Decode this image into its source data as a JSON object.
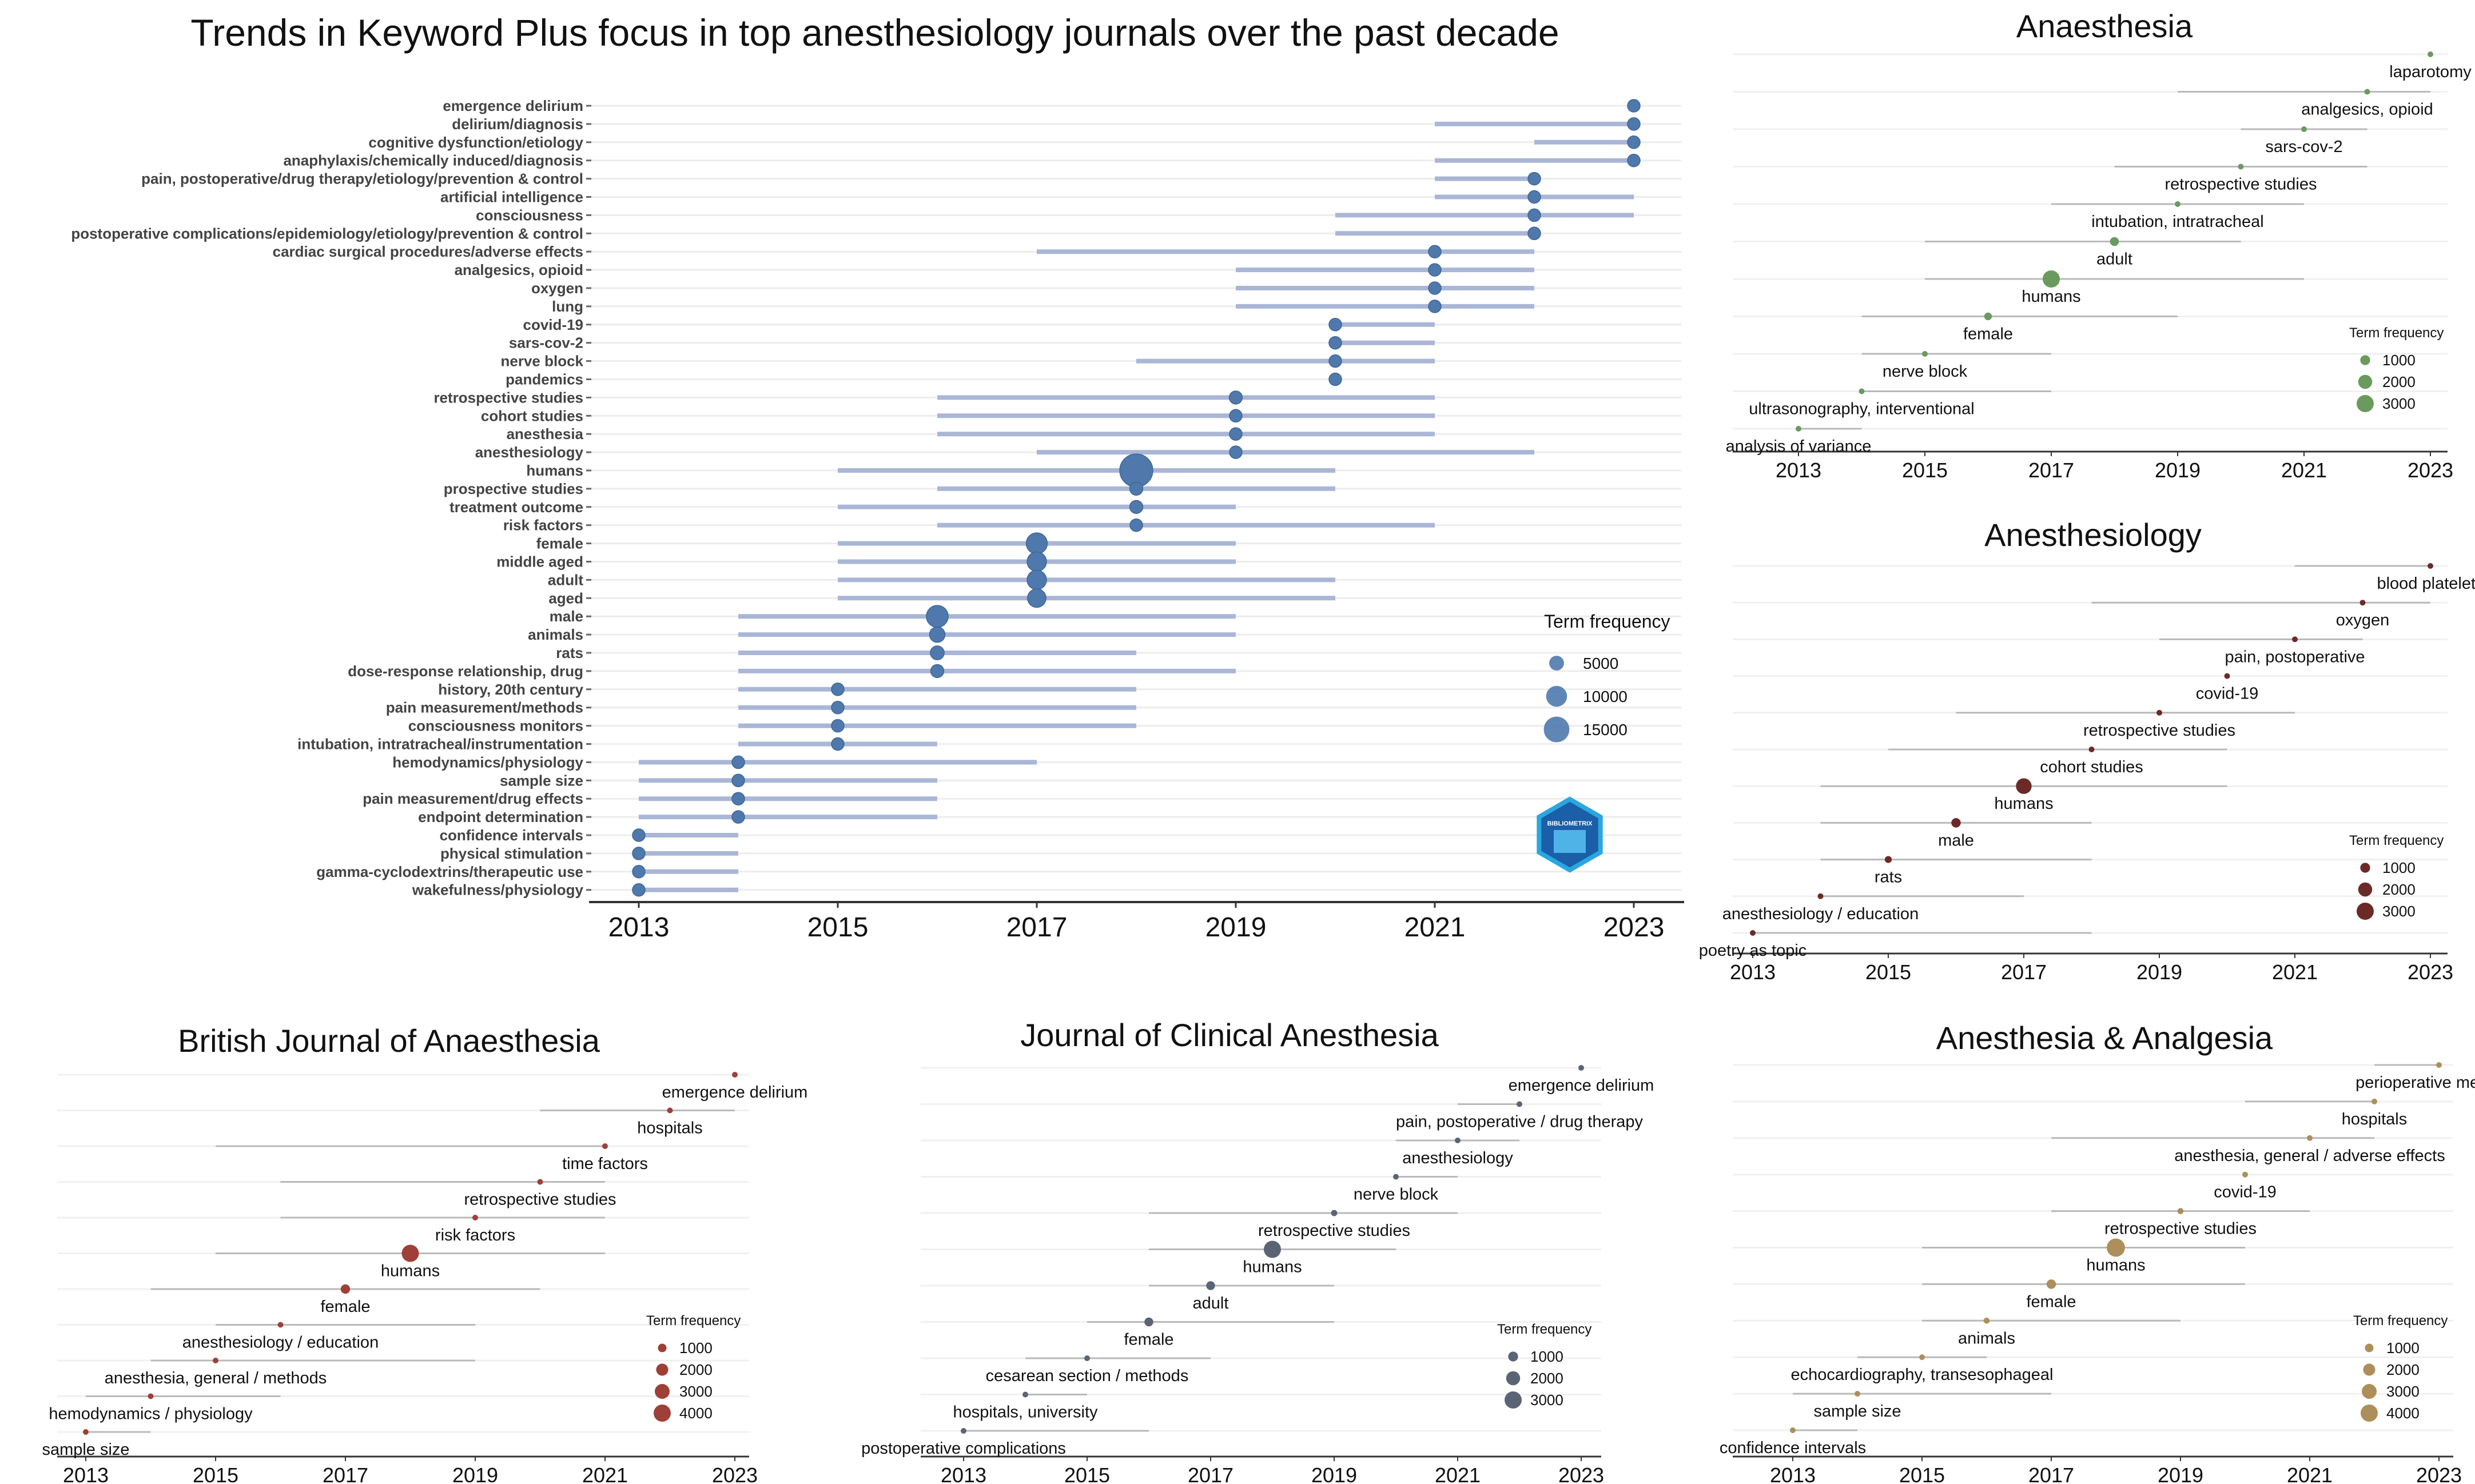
{
  "chart_data": [
    {
      "type": "scatter",
      "title": "Trends in Keyword Plus focus in top anesthesiology journals over the past decade",
      "color": "#4f79ad",
      "line_color": "#aab6d6",
      "xlim": [
        2013,
        2023
      ],
      "x_ticks": [
        "2013",
        "2015",
        "2017",
        "2019",
        "2021",
        "2023"
      ],
      "legend_title": "Term frequency",
      "legend_sizes": [
        5000,
        10000,
        15000
      ],
      "legend_labels": [
        "5000",
        "10000",
        "15000"
      ],
      "legend_position": "right",
      "logo_text": "BIBLIOMETRIX",
      "terms": [
        {
          "label": "emergence delirium",
          "start": 2023,
          "peak": 2023,
          "end": 2023,
          "freq": 600
        },
        {
          "label": "delirium/diagnosis",
          "start": 2021,
          "peak": 2023,
          "end": 2023,
          "freq": 600
        },
        {
          "label": "cognitive dysfunction/etiology",
          "start": 2022,
          "peak": 2023,
          "end": 2023,
          "freq": 600
        },
        {
          "label": "anaphylaxis/chemically induced/diagnosis",
          "start": 2021,
          "peak": 2023,
          "end": 2023,
          "freq": 600
        },
        {
          "label": "pain, postoperative/drug therapy/etiology/prevention & control",
          "start": 2021,
          "peak": 2022,
          "end": 2022,
          "freq": 600
        },
        {
          "label": "artificial intelligence",
          "start": 2021,
          "peak": 2022,
          "end": 2023,
          "freq": 600
        },
        {
          "label": "consciousness",
          "start": 2020,
          "peak": 2022,
          "end": 2023,
          "freq": 700
        },
        {
          "label": "postoperative complications/epidemiology/etiology/prevention & control",
          "start": 2020,
          "peak": 2022,
          "end": 2022,
          "freq": 600
        },
        {
          "label": "cardiac surgical procedures/adverse effects",
          "start": 2017,
          "peak": 2021,
          "end": 2022,
          "freq": 700
        },
        {
          "label": "analgesics, opioid",
          "start": 2019,
          "peak": 2021,
          "end": 2022,
          "freq": 700
        },
        {
          "label": "oxygen",
          "start": 2019,
          "peak": 2021,
          "end": 2022,
          "freq": 700
        },
        {
          "label": "lung",
          "start": 2019,
          "peak": 2021,
          "end": 2022,
          "freq": 700
        },
        {
          "label": "covid-19",
          "start": 2020,
          "peak": 2020,
          "end": 2021,
          "freq": 900
        },
        {
          "label": "sars-cov-2",
          "start": 2020,
          "peak": 2020,
          "end": 2021,
          "freq": 800
        },
        {
          "label": "nerve block",
          "start": 2018,
          "peak": 2020,
          "end": 2021,
          "freq": 900
        },
        {
          "label": "pandemics",
          "start": 2020,
          "peak": 2020,
          "end": 2020,
          "freq": 700
        },
        {
          "label": "retrospective studies",
          "start": 2016,
          "peak": 2019,
          "end": 2021,
          "freq": 2500
        },
        {
          "label": "cohort studies",
          "start": 2016,
          "peak": 2019,
          "end": 2021,
          "freq": 2200
        },
        {
          "label": "anesthesia",
          "start": 2016,
          "peak": 2019,
          "end": 2021,
          "freq": 2000
        },
        {
          "label": "anesthesiology",
          "start": 2017,
          "peak": 2019,
          "end": 2022,
          "freq": 1700
        },
        {
          "label": "humans",
          "start": 2015,
          "peak": 2018,
          "end": 2020,
          "freq": 16000
        },
        {
          "label": "prospective studies",
          "start": 2016,
          "peak": 2018,
          "end": 2020,
          "freq": 2500
        },
        {
          "label": "treatment outcome",
          "start": 2015,
          "peak": 2018,
          "end": 2019,
          "freq": 2500
        },
        {
          "label": "risk factors",
          "start": 2016,
          "peak": 2018,
          "end": 2021,
          "freq": 2200
        },
        {
          "label": "female",
          "start": 2015,
          "peak": 2017,
          "end": 2019,
          "freq": 6500
        },
        {
          "label": "middle aged",
          "start": 2015,
          "peak": 2017,
          "end": 2019,
          "freq": 5500
        },
        {
          "label": "adult",
          "start": 2015,
          "peak": 2017,
          "end": 2020,
          "freq": 5500
        },
        {
          "label": "aged",
          "start": 2015,
          "peak": 2017,
          "end": 2020,
          "freq": 5000
        },
        {
          "label": "male",
          "start": 2014,
          "peak": 2016,
          "end": 2019,
          "freq": 7000
        },
        {
          "label": "animals",
          "start": 2014,
          "peak": 2016,
          "end": 2019,
          "freq": 3500
        },
        {
          "label": "rats",
          "start": 2014,
          "peak": 2016,
          "end": 2018,
          "freq": 2800
        },
        {
          "label": "dose-response relationship, drug",
          "start": 2014,
          "peak": 2016,
          "end": 2019,
          "freq": 2500
        },
        {
          "label": "history, 20th century",
          "start": 2014,
          "peak": 2015,
          "end": 2018,
          "freq": 1000
        },
        {
          "label": "pain measurement/methods",
          "start": 2014,
          "peak": 2015,
          "end": 2018,
          "freq": 1000
        },
        {
          "label": "consciousness monitors",
          "start": 2014,
          "peak": 2015,
          "end": 2018,
          "freq": 1000
        },
        {
          "label": "intubation, intratracheal/instrumentation",
          "start": 2014,
          "peak": 2015,
          "end": 2016,
          "freq": 1000
        },
        {
          "label": "hemodynamics/physiology",
          "start": 2013,
          "peak": 2014,
          "end": 2017,
          "freq": 1200
        },
        {
          "label": "sample size",
          "start": 2013,
          "peak": 2014,
          "end": 2016,
          "freq": 1200
        },
        {
          "label": "pain measurement/drug effects",
          "start": 2013,
          "peak": 2014,
          "end": 2016,
          "freq": 1200
        },
        {
          "label": "endpoint determination",
          "start": 2013,
          "peak": 2014,
          "end": 2016,
          "freq": 1200
        },
        {
          "label": "confidence intervals",
          "start": 2013,
          "peak": 2013,
          "end": 2014,
          "freq": 1000
        },
        {
          "label": "physical stimulation",
          "start": 2013,
          "peak": 2013,
          "end": 2014,
          "freq": 1000
        },
        {
          "label": "gamma-cyclodextrins/therapeutic use",
          "start": 2013,
          "peak": 2013,
          "end": 2014,
          "freq": 1000
        },
        {
          "label": "wakefulness/physiology",
          "start": 2013,
          "peak": 2013,
          "end": 2014,
          "freq": 1000
        }
      ]
    },
    {
      "type": "scatter",
      "title": "Anaesthesia",
      "color": "#6a9a5e",
      "line_color": "#b9b9b9",
      "xlim": [
        2013,
        2023
      ],
      "x_ticks": [
        "2013",
        "2015",
        "2017",
        "2019",
        "2021",
        "2023"
      ],
      "legend_title": "Term frequency",
      "legend_sizes": [
        1000,
        2000,
        3000
      ],
      "legend_labels": [
        "1000",
        "2000",
        "3000"
      ],
      "legend_position": "right",
      "terms": [
        {
          "label": "laparotomy",
          "start": 2023,
          "peak": 2023,
          "end": 2023,
          "freq": 100
        },
        {
          "label": "analgesics, opioid",
          "start": 2019,
          "peak": 2022,
          "end": 2023,
          "freq": 120
        },
        {
          "label": "sars-cov-2",
          "start": 2020,
          "peak": 2021,
          "end": 2022,
          "freq": 150
        },
        {
          "label": "retrospective studies",
          "start": 2018,
          "peak": 2020,
          "end": 2022,
          "freq": 250
        },
        {
          "label": "intubation, intratracheal",
          "start": 2017,
          "peak": 2019,
          "end": 2021,
          "freq": 300
        },
        {
          "label": "adult",
          "start": 2015,
          "peak": 2018,
          "end": 2020,
          "freq": 800
        },
        {
          "label": "humans",
          "start": 2015,
          "peak": 2017,
          "end": 2021,
          "freq": 3000
        },
        {
          "label": "female",
          "start": 2014,
          "peak": 2016,
          "end": 2019,
          "freq": 600
        },
        {
          "label": "nerve block",
          "start": 2014,
          "peak": 2015,
          "end": 2017,
          "freq": 300
        },
        {
          "label": "ultrasonography, interventional",
          "start": 2014,
          "peak": 2014,
          "end": 2017,
          "freq": 250
        },
        {
          "label": "analysis of variance",
          "start": 2013,
          "peak": 2013,
          "end": 2014,
          "freq": 100
        }
      ]
    },
    {
      "type": "scatter",
      "title": "Anesthesiology",
      "color": "#6b2a26",
      "line_color": "#b9b9b9",
      "xlim": [
        2013,
        2023
      ],
      "x_ticks": [
        "2013",
        "2015",
        "2017",
        "2019",
        "2021",
        "2023"
      ],
      "legend_title": "Term frequency",
      "legend_sizes": [
        1000,
        2000,
        3000
      ],
      "legend_labels": [
        "1000",
        "2000",
        "3000"
      ],
      "legend_position": "right",
      "terms": [
        {
          "label": "blood platelets",
          "start": 2021,
          "peak": 2023,
          "end": 2023,
          "freq": 100
        },
        {
          "label": "oxygen",
          "start": 2018,
          "peak": 2022,
          "end": 2023,
          "freq": 120
        },
        {
          "label": "pain, postoperative",
          "start": 2019,
          "peak": 2021,
          "end": 2022,
          "freq": 150
        },
        {
          "label": "covid-19",
          "start": 2020,
          "peak": 2020,
          "end": 2020,
          "freq": 100
        },
        {
          "label": "retrospective studies",
          "start": 2016,
          "peak": 2019,
          "end": 2021,
          "freq": 300
        },
        {
          "label": "cohort studies",
          "start": 2015,
          "peak": 2018,
          "end": 2020,
          "freq": 300
        },
        {
          "label": "humans",
          "start": 2014,
          "peak": 2017,
          "end": 2020,
          "freq": 2500
        },
        {
          "label": "male",
          "start": 2014,
          "peak": 2016,
          "end": 2018,
          "freq": 900
        },
        {
          "label": "rats",
          "start": 2014,
          "peak": 2015,
          "end": 2018,
          "freq": 500
        },
        {
          "label": "anesthesiology / education",
          "start": 2014,
          "peak": 2014,
          "end": 2017,
          "freq": 250
        },
        {
          "label": "poetry as topic",
          "start": 2013,
          "peak": 2013,
          "end": 2018,
          "freq": 100
        }
      ]
    },
    {
      "type": "scatter",
      "title": "British Journal of Anaesthesia",
      "color": "#9e4037",
      "line_color": "#b9b9b9",
      "xlim": [
        2013,
        2023
      ],
      "x_ticks": [
        "2013",
        "2015",
        "2017",
        "2019",
        "2021",
        "2023"
      ],
      "legend_title": "Term frequency",
      "legend_sizes": [
        1000,
        2000,
        3000,
        4000
      ],
      "legend_labels": [
        "1000",
        "2000",
        "3000",
        "4000"
      ],
      "legend_position": "right",
      "terms": [
        {
          "label": "emergence delirium",
          "start": 2023,
          "peak": 2023,
          "end": 2023,
          "freq": 100
        },
        {
          "label": "hospitals",
          "start": 2020,
          "peak": 2022,
          "end": 2023,
          "freq": 120
        },
        {
          "label": "time factors",
          "start": 2015,
          "peak": 2021,
          "end": 2021,
          "freq": 300
        },
        {
          "label": "retrospective studies",
          "start": 2016,
          "peak": 2020,
          "end": 2021,
          "freq": 400
        },
        {
          "label": "risk factors",
          "start": 2016,
          "peak": 2019,
          "end": 2021,
          "freq": 400
        },
        {
          "label": "humans",
          "start": 2015,
          "peak": 2018,
          "end": 2021,
          "freq": 4000
        },
        {
          "label": "female",
          "start": 2014,
          "peak": 2017,
          "end": 2020,
          "freq": 1200
        },
        {
          "label": "anesthesiology / education",
          "start": 2015,
          "peak": 2016,
          "end": 2019,
          "freq": 300
        },
        {
          "label": "anesthesia, general / methods",
          "start": 2014,
          "peak": 2015,
          "end": 2019,
          "freq": 300
        },
        {
          "label": "hemodynamics / physiology",
          "start": 2013,
          "peak": 2014,
          "end": 2016,
          "freq": 300
        },
        {
          "label": "sample size",
          "start": 2013,
          "peak": 2013,
          "end": 2014,
          "freq": 150
        }
      ]
    },
    {
      "type": "scatter",
      "title": "Journal of Clinical Anesthesia",
      "color": "#5b6475",
      "line_color": "#b9b9b9",
      "xlim": [
        2013,
        2023
      ],
      "x_ticks": [
        "2013",
        "2015",
        "2017",
        "2019",
        "2021",
        "2023"
      ],
      "legend_title": "Term frequency",
      "legend_sizes": [
        1000,
        2000,
        3000
      ],
      "legend_labels": [
        "1000",
        "2000",
        "3000"
      ],
      "legend_position": "right",
      "terms": [
        {
          "label": "emergence delirium",
          "start": 2023,
          "peak": 2023,
          "end": 2023,
          "freq": 100
        },
        {
          "label": "pain, postoperative / drug therapy",
          "start": 2021,
          "peak": 2022,
          "end": 2022,
          "freq": 120
        },
        {
          "label": "anesthesiology",
          "start": 2020,
          "peak": 2021,
          "end": 2022,
          "freq": 200
        },
        {
          "label": "nerve block",
          "start": 2020,
          "peak": 2020,
          "end": 2021,
          "freq": 250
        },
        {
          "label": "retrospective studies",
          "start": 2016,
          "peak": 2019,
          "end": 2021,
          "freq": 400
        },
        {
          "label": "humans",
          "start": 2016,
          "peak": 2018,
          "end": 2020,
          "freq": 3000
        },
        {
          "label": "adult",
          "start": 2016,
          "peak": 2017,
          "end": 2019,
          "freq": 800
        },
        {
          "label": "female",
          "start": 2015,
          "peak": 2016,
          "end": 2019,
          "freq": 800
        },
        {
          "label": "cesarean section / methods",
          "start": 2014,
          "peak": 2015,
          "end": 2017,
          "freq": 200
        },
        {
          "label": "hospitals, university",
          "start": 2014,
          "peak": 2014,
          "end": 2015,
          "freq": 150
        },
        {
          "label": "postoperative complications",
          "start": 2013,
          "peak": 2013,
          "end": 2016,
          "freq": 100
        }
      ]
    },
    {
      "type": "scatter",
      "title": "Anesthesia & Analgesia",
      "color": "#ad8f5b",
      "line_color": "#b9b9b9",
      "xlim": [
        2013,
        2023
      ],
      "x_ticks": [
        "2013",
        "2015",
        "2017",
        "2019",
        "2021",
        "2023"
      ],
      "legend_title": "Term frequency",
      "legend_sizes": [
        1000,
        2000,
        3000,
        4000
      ],
      "legend_labels": [
        "1000",
        "2000",
        "3000",
        "4000"
      ],
      "legend_position": "right",
      "terms": [
        {
          "label": "perioperative medicine",
          "start": 2022,
          "peak": 2023,
          "end": 2023,
          "freq": 100
        },
        {
          "label": "hospitals",
          "start": 2020,
          "peak": 2022,
          "end": 2022,
          "freq": 120
        },
        {
          "label": "anesthesia, general / adverse effects",
          "start": 2017,
          "peak": 2021,
          "end": 2022,
          "freq": 200
        },
        {
          "label": "covid-19",
          "start": 2020,
          "peak": 2020,
          "end": 2020,
          "freq": 150
        },
        {
          "label": "retrospective studies",
          "start": 2017,
          "peak": 2019,
          "end": 2021,
          "freq": 500
        },
        {
          "label": "humans",
          "start": 2015,
          "peak": 2018,
          "end": 2020,
          "freq": 4500
        },
        {
          "label": "female",
          "start": 2015,
          "peak": 2017,
          "end": 2020,
          "freq": 1200
        },
        {
          "label": "animals",
          "start": 2015,
          "peak": 2016,
          "end": 2019,
          "freq": 500
        },
        {
          "label": "echocardiography, transesophageal",
          "start": 2014,
          "peak": 2015,
          "end": 2016,
          "freq": 300
        },
        {
          "label": "sample size",
          "start": 2013,
          "peak": 2014,
          "end": 2017,
          "freq": 250
        },
        {
          "label": "confidence intervals",
          "start": 2013,
          "peak": 2013,
          "end": 2014,
          "freq": 120
        }
      ]
    }
  ]
}
